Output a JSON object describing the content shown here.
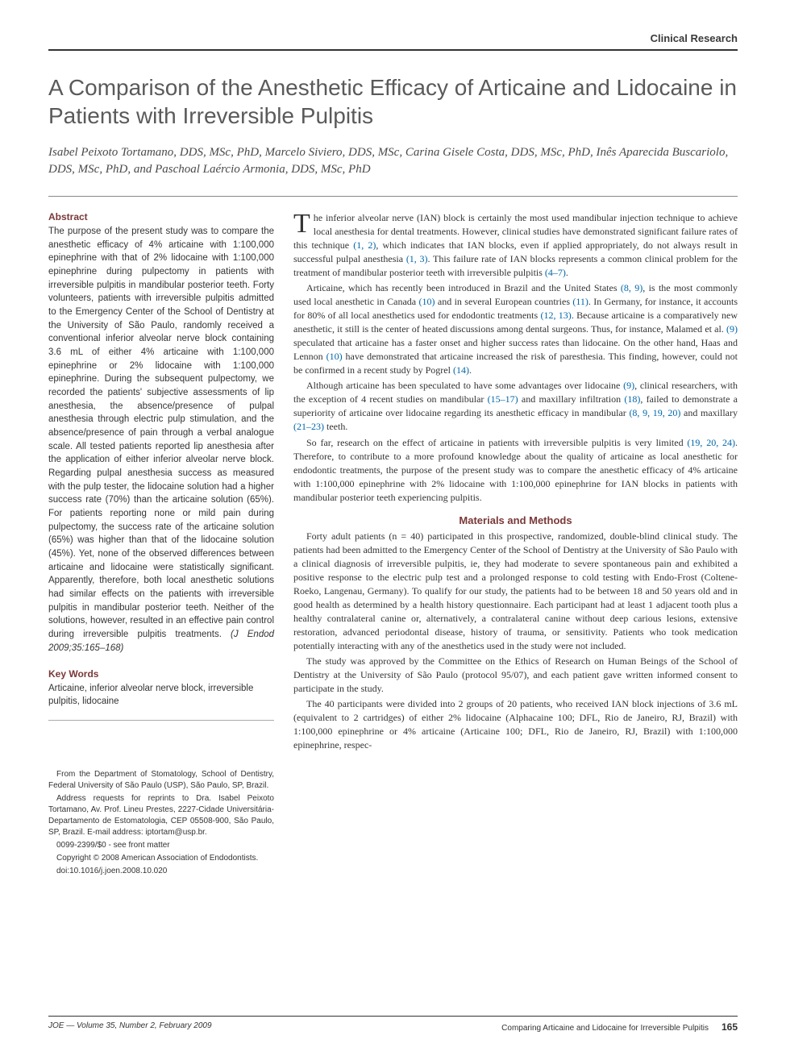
{
  "header": {
    "label": "Clinical Research"
  },
  "title": "A Comparison of the Anesthetic Efficacy of Articaine and Lidocaine in Patients with Irreversible Pulpitis",
  "authors": "Isabel Peixoto Tortamano, DDS, MSc, PhD, Marcelo Siviero, DDS, MSc, Carina Gisele Costa, DDS, MSc, PhD, Inês Aparecida Buscariolo, DDS, MSc, PhD, and Paschoal Laércio Armonia, DDS, MSc, PhD",
  "abstract": {
    "heading": "Abstract",
    "text": "The purpose of the present study was to compare the anesthetic efficacy of 4% articaine with 1:100,000 epinephrine with that of 2% lidocaine with 1:100,000 epinephrine during pulpectomy in patients with irreversible pulpitis in mandibular posterior teeth. Forty volunteers, patients with irreversible pulpitis admitted to the Emergency Center of the School of Dentistry at the University of São Paulo, randomly received a conventional inferior alveolar nerve block containing 3.6 mL of either 4% articaine with 1:100,000 epinephrine or 2% lidocaine with 1:100,000 epinephrine. During the subsequent pulpectomy, we recorded the patients' subjective assessments of lip anesthesia, the absence/presence of pulpal anesthesia through electric pulp stimulation, and the absence/presence of pain through a verbal analogue scale. All tested patients reported lip anesthesia after the application of either inferior alveolar nerve block. Regarding pulpal anesthesia success as measured with the pulp tester, the lidocaine solution had a higher success rate (70%) than the articaine solution (65%). For patients reporting none or mild pain during pulpectomy, the success rate of the articaine solution (65%) was higher than that of the lidocaine solution (45%). Yet, none of the observed differences between articaine and lidocaine were statistically significant. Apparently, therefore, both local anesthetic solutions had similar effects on the patients with irreversible pulpitis in mandibular posterior teeth. Neither of the solutions, however, resulted in an effective pain control during irreversible pulpitis treatments.",
    "citation": "(J Endod 2009;35:165–168)"
  },
  "keywords": {
    "heading": "Key Words",
    "text": "Articaine, inferior alveolar nerve block, irreversible pulpitis, lidocaine"
  },
  "footnote": {
    "p1": "From the Department of Stomatology, School of Dentistry, Federal University of São Paulo (USP), São Paulo, SP, Brazil.",
    "p2": "Address requests for reprints to Dra. Isabel Peixoto Tortamano, Av. Prof. Lineu Prestes, 2227-Cidade Universitária-Departamento de Estomatologia, CEP 05508-900, São Paulo, SP, Brazil. E-mail address: iptortam@usp.br.",
    "p3": "0099-2399/$0 - see front matter",
    "p4": "Copyright © 2008 American Association of Endodontists.",
    "p5": "doi:10.1016/j.joen.2008.10.020"
  },
  "body": {
    "p1a": "he inferior alveolar nerve (IAN) block is certainly the most used mandibular injection technique to achieve local anesthesia for dental treatments. However, clinical studies have demonstrated significant failure rates of this technique ",
    "r1": "(1, 2)",
    "p1b": ", which indicates that IAN blocks, even if applied appropriately, do not always result in successful pulpal anesthesia ",
    "r2": "(1, 3)",
    "p1c": ". This failure rate of IAN blocks represents a common clinical problem for the treatment of mandibular posterior teeth with irreversible pulpitis ",
    "r3": "(4–7)",
    "p1d": ".",
    "p2a": "Articaine, which has recently been introduced in Brazil and the United States ",
    "r4": "(8, 9)",
    "p2b": ", is the most commonly used local anesthetic in Canada ",
    "r5": "(10)",
    "p2c": " and in several European countries ",
    "r6": "(11)",
    "p2d": ". In Germany, for instance, it accounts for 80% of all local anesthetics used for endodontic treatments ",
    "r7": "(12, 13)",
    "p2e": ". Because articaine is a comparatively new anesthetic, it still is the center of heated discussions among dental surgeons. Thus, for instance, Malamed et al. ",
    "r8": "(9)",
    "p2f": " speculated that articaine has a faster onset and higher success rates than lidocaine. On the other hand, Haas and Lennon ",
    "r9": "(10)",
    "p2g": " have demonstrated that articaine increased the risk of paresthesia. This finding, however, could not be confirmed in a recent study by Pogrel ",
    "r10": "(14)",
    "p2h": ".",
    "p3a": "Although articaine has been speculated to have some advantages over lidocaine ",
    "r11": "(9)",
    "p3b": ", clinical researchers, with the exception of 4 recent studies on mandibular ",
    "r12": "(15–17)",
    "p3c": " and maxillary infiltration ",
    "r13": "(18)",
    "p3d": ", failed to demonstrate a superiority of articaine over lidocaine regarding its anesthetic efficacy in mandibular ",
    "r14": "(8, 9, 19, 20)",
    "p3e": " and maxillary ",
    "r15": "(21–23)",
    "p3f": " teeth.",
    "p4a": "So far, research on the effect of articaine in patients with irreversible pulpitis is very limited ",
    "r16": "(19, 20, 24)",
    "p4b": ". Therefore, to contribute to a more profound knowledge about the quality of articaine as local anesthetic for endodontic treatments, the purpose of the present study was to compare the anesthetic efficacy of 4% articaine with 1:100,000 epinephrine with 2% lidocaine with 1:100,000 epinephrine for IAN blocks in patients with mandibular posterior teeth experiencing pulpitis.",
    "methods_heading": "Materials and Methods",
    "m1": "Forty adult patients (n = 40) participated in this prospective, randomized, double-blind clinical study. The patients had been admitted to the Emergency Center of the School of Dentistry at the University of São Paulo with a clinical diagnosis of irreversible pulpitis, ie, they had moderate to severe spontaneous pain and exhibited a positive response to the electric pulp test and a prolonged response to cold testing with Endo-Frost (Coltene-Roeko, Langenau, Germany). To qualify for our study, the patients had to be between 18 and 50 years old and in good health as determined by a health history questionnaire. Each participant had at least 1 adjacent tooth plus a healthy contralateral canine or, alternatively, a contralateral canine without deep carious lesions, extensive restoration, advanced periodontal disease, history of trauma, or sensitivity. Patients who took medication potentially interacting with any of the anesthetics used in the study were not included.",
    "m2": "The study was approved by the Committee on the Ethics of Research on Human Beings of the School of Dentistry at the University of São Paulo (protocol 95/07), and each patient gave written informed consent to participate in the study.",
    "m3": "The 40 participants were divided into 2 groups of 20 patients, who received IAN block injections of 3.6 mL (equivalent to 2 cartridges) of either 2% lidocaine (Alphacaine 100; DFL, Rio de Janeiro, RJ, Brazil) with 1:100,000 epinephrine or 4% articaine (Articaine 100; DFL, Rio de Janeiro, RJ, Brazil) with 1:100,000 epinephrine, respec-"
  },
  "footer": {
    "journal": "JOE — Volume 35, Number 2, February 2009",
    "running": "Comparing Articaine and Lidocaine for Irreversible Pulpitis",
    "page": "165"
  },
  "colors": {
    "heading_red": "#7a3838",
    "link_blue": "#0066aa",
    "title_gray": "#5a5a5a",
    "rule": "#333333"
  }
}
